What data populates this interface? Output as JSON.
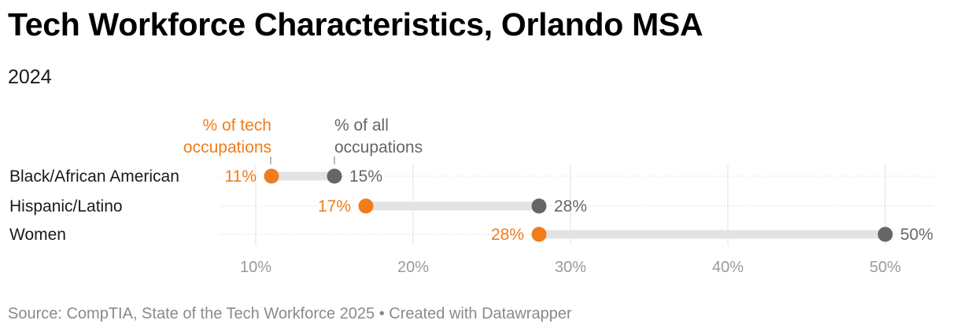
{
  "title": "Tech Workforce Characteristics, Orlando MSA",
  "subtitle": "2024",
  "source": "Source: CompTIA, State of the Tech Workforce 2025 • Created with Datawrapper",
  "colors": {
    "tech": "#f07c1c",
    "all": "#666666",
    "bar": "#e3e3e3",
    "grid": "#e0e0e0",
    "axis_text": "#9a9a9a",
    "label": "#1a1a1a"
  },
  "chart_data": {
    "type": "dot-range",
    "title": "Tech Workforce Characteristics, Orlando MSA",
    "subtitle": "2024",
    "categories": [
      "Black/African American",
      "Hispanic/Latino",
      "Women"
    ],
    "series": [
      {
        "name": "% of tech occupations",
        "values": [
          11,
          17,
          28
        ]
      },
      {
        "name": "% of all occupations",
        "values": [
          15,
          28,
          50
        ]
      }
    ],
    "value_labels": {
      "tech": [
        "11%",
        "17%",
        "28%"
      ],
      "all": [
        "15%",
        "28%",
        "50%"
      ]
    },
    "legend_labels": {
      "tech": [
        "% of tech",
        "occupations"
      ],
      "all": [
        "% of all",
        "occupations"
      ]
    },
    "xlim": [
      8,
      53
    ],
    "ticks": [
      10,
      20,
      30,
      40,
      50
    ],
    "tick_labels": [
      "10%",
      "20%",
      "30%",
      "40%",
      "50%"
    ],
    "grid": true
  }
}
